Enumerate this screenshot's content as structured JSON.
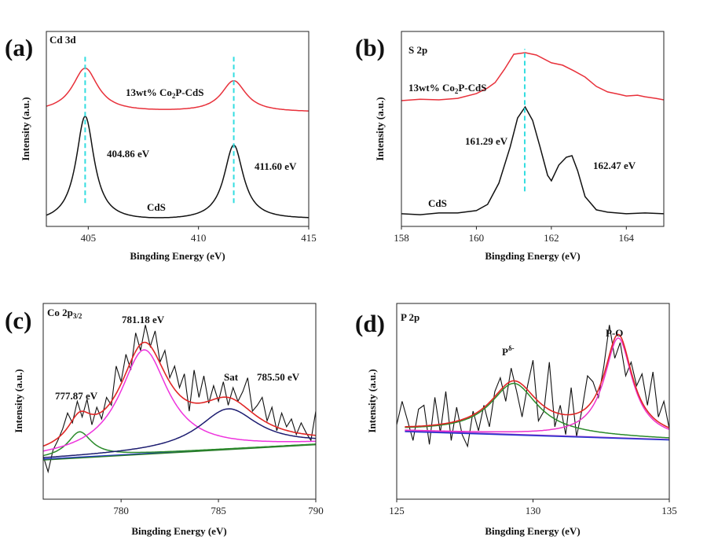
{
  "chart_data": [
    {
      "panel": "(a)",
      "title": "Cd 3d",
      "type": "line",
      "xlabel": "Bingding Energy (eV)",
      "ylabel": "Intensity (a.u.)",
      "xlim": [
        403.1,
        415
      ],
      "ylim": [
        0,
        100
      ],
      "xticks": [
        405,
        410,
        415
      ],
      "grid": false,
      "series": [
        {
          "name": "13wt% Co2P-CdS",
          "color": "#e8303a",
          "model": "lorentzian",
          "baseline": [
            58.5,
            58.5
          ],
          "peaks": [
            {
              "center": 404.86,
              "height": 22.5,
              "fwhm": 1.4
            },
            {
              "center": 411.6,
              "height": 16,
              "fwhm": 1.35
            }
          ]
        },
        {
          "name": "CdS",
          "color": "#111111",
          "model": "lorentzian",
          "baseline": [
            1.5,
            3.5
          ],
          "peaks": [
            {
              "center": 404.86,
              "height": 54.5,
              "fwhm": 1.0
            },
            {
              "center": 411.6,
              "height": 38.5,
              "fwhm": 1.06
            }
          ]
        }
      ],
      "reference_lines": [
        {
          "x": 404.86,
          "y": [
            12,
            88
          ],
          "color": "#33dde0"
        },
        {
          "x": 411.6,
          "y": [
            12,
            88
          ],
          "color": "#33dde0"
        }
      ],
      "labels": {
        "sample_prefix": "13wt% Co",
        "sample_sub": "2",
        "sample_suffix": "P-CdS",
        "reference": "CdS",
        "peak1": "404.86 eV",
        "peak2": "411.60 eV"
      }
    },
    {
      "panel": "(b)",
      "title": "S 2p",
      "type": "line",
      "xlabel": "Bingding Energy (eV)",
      "ylabel": "Intensity (a.u.)",
      "xlim": [
        158,
        165
      ],
      "ylim": [
        0,
        100
      ],
      "xticks": [
        158,
        160,
        162,
        164
      ],
      "grid": false,
      "series": [
        {
          "name": "13wt% Co2P-CdS",
          "color": "#e8303a",
          "x": [
            158,
            158.5,
            159,
            159.5,
            160,
            160.3,
            160.5,
            160.75,
            161,
            161.3,
            161.6,
            162,
            162.3,
            162.6,
            162.9,
            163.2,
            163.5,
            163.8,
            164,
            164.3,
            164.5,
            164.8,
            165
          ],
          "y": [
            64.5,
            65.2,
            64.9,
            65.7,
            68.1,
            71,
            73.8,
            80.6,
            88.3,
            89.1,
            87.9,
            83.9,
            82.7,
            79.8,
            76.6,
            71.8,
            69,
            67.8,
            66.9,
            67.3,
            66.5,
            65.6,
            64.9
          ]
        },
        {
          "name": "CdS",
          "color": "#111111",
          "x": [
            158,
            158.5,
            159,
            159.5,
            160,
            160.3,
            160.6,
            160.9,
            161.1,
            161.3,
            161.5,
            161.7,
            161.9,
            162,
            162.2,
            162.4,
            162.55,
            162.7,
            162.9,
            163.2,
            163.5,
            164,
            164.5,
            165
          ],
          "y": [
            6.5,
            6.0,
            6.9,
            6.9,
            8.1,
            11.3,
            22.2,
            40.7,
            55.6,
            61.3,
            54.4,
            40.7,
            26.2,
            23.4,
            31.5,
            35.5,
            36.3,
            28.6,
            15.3,
            8.5,
            7.3,
            6.5,
            6.9,
            6.5
          ]
        }
      ],
      "reference_lines": [
        {
          "x": 161.29,
          "y": [
            18,
            91
          ],
          "color": "#33dde0"
        }
      ],
      "labels": {
        "sample_prefix": "13wt% Co",
        "sample_sub": "2",
        "sample_suffix": "P-CdS",
        "reference": "CdS",
        "peak1": "161.29 eV",
        "peak2": "162.47 eV"
      }
    },
    {
      "panel": "(c)",
      "title_main": "Co 2p",
      "title_sub": "3/2",
      "type": "line",
      "xlabel": "Bingding Energy (eV)",
      "ylabel": "Intensity (a.u.)",
      "xlim": [
        776,
        790
      ],
      "ylim": [
        0,
        100
      ],
      "xticks": [
        780,
        785,
        790
      ],
      "grid": false,
      "raw": {
        "color": "#111111",
        "x": [
          776,
          776.25,
          776.5,
          776.75,
          777,
          777.25,
          777.5,
          777.75,
          778,
          778.25,
          778.5,
          778.75,
          779,
          779.25,
          779.5,
          779.75,
          780,
          780.25,
          780.5,
          780.75,
          781,
          781.25,
          781.5,
          781.75,
          782,
          782.25,
          782.5,
          782.75,
          783,
          783.25,
          783.5,
          783.75,
          784,
          784.25,
          784.5,
          784.75,
          785,
          785.25,
          785.5,
          785.75,
          786,
          786.25,
          786.5,
          786.75,
          787,
          787.25,
          787.5,
          787.75,
          788,
          788.25,
          788.5,
          788.75,
          789,
          789.25,
          789.5,
          789.75,
          790
        ],
        "y": [
          22,
          14,
          25,
          30,
          36,
          44,
          39,
          50,
          42,
          51,
          38,
          47,
          41,
          52,
          48,
          68,
          60,
          74,
          66,
          85,
          76,
          89,
          78,
          86,
          70,
          76,
          62,
          68,
          57,
          64,
          45,
          66,
          52,
          63,
          49,
          58,
          50,
          60,
          48,
          57,
          50,
          55,
          62,
          45,
          48,
          52,
          40,
          47,
          35,
          44,
          37,
          41,
          33,
          39,
          34,
          30,
          45
        ]
      },
      "fit": {
        "model": "lorentzian",
        "background": {
          "x": [
            776,
            790
          ],
          "y": [
            20.5,
            28.1
          ],
          "colors": [
            "#2233cc",
            "#2a7a2a"
          ]
        },
        "envelope_color": "#e02626",
        "peaks": [
          {
            "center": 777.87,
            "height": 12.9,
            "fwhm": 1.5,
            "color": "#2a8a2a"
          },
          {
            "center": 781.18,
            "height": 53,
            "fwhm": 3.0,
            "color": "#ee33dd"
          },
          {
            "center": 785.5,
            "height": 20.5,
            "fwhm": 3.7,
            "color": "#1c1c70"
          }
        ]
      },
      "labels": {
        "peak1": "777.87 eV",
        "peak2": "781.18 eV",
        "sat": "Sat",
        "peak3": "785.50 eV"
      }
    },
    {
      "panel": "(d)",
      "title": "P 2p",
      "type": "line",
      "xlabel": "Bingding Energy (eV)",
      "ylabel": "Intensity (a.u.)",
      "xlim": [
        125,
        135
      ],
      "ylim": [
        0,
        100
      ],
      "xticks": [
        125,
        130,
        135
      ],
      "grid": false,
      "raw": {
        "color": "#111111",
        "x": [
          125,
          125.2,
          125.4,
          125.6,
          125.8,
          126,
          126.2,
          126.4,
          126.6,
          126.8,
          127,
          127.2,
          127.4,
          127.6,
          127.8,
          128,
          128.2,
          128.4,
          128.6,
          128.8,
          129,
          129.2,
          129.4,
          129.6,
          129.8,
          130,
          130.2,
          130.4,
          130.6,
          130.8,
          131,
          131.2,
          131.4,
          131.6,
          131.8,
          132,
          132.2,
          132.4,
          132.6,
          132.8,
          133,
          133.2,
          133.4,
          133.6,
          133.8,
          134,
          134.2,
          134.4,
          134.6,
          134.8,
          135
        ],
        "y": [
          38,
          50,
          40,
          30,
          46,
          48,
          28,
          52,
          34,
          55,
          30,
          47,
          33,
          27,
          45,
          35,
          48,
          37,
          55,
          62,
          50,
          67,
          55,
          42,
          58,
          71,
          40,
          45,
          70,
          37,
          48,
          33,
          57,
          32,
          46,
          63,
          60,
          52,
          68,
          89,
          72,
          80,
          63,
          70,
          58,
          64,
          48,
          65,
          42,
          50,
          36
        ]
      },
      "fit": {
        "model": "lorentzian",
        "background": {
          "x": [
            125.3,
            135
          ],
          "y": [
            35,
            30.5
          ],
          "colors": [
            "#8a33cc",
            "#2233cc"
          ]
        },
        "envelope_color": "#e02626",
        "peaks": [
          {
            "center": 129.3,
            "height": 26,
            "fwhm": 2.1,
            "color": "#2a8a2a"
          },
          {
            "center": 133.13,
            "height": 51,
            "fwhm": 1.25,
            "color": "#ee33cc"
          }
        ]
      },
      "labels": {
        "p_main": "P",
        "p_sup": "δ-",
        "po": "P-O"
      }
    }
  ]
}
